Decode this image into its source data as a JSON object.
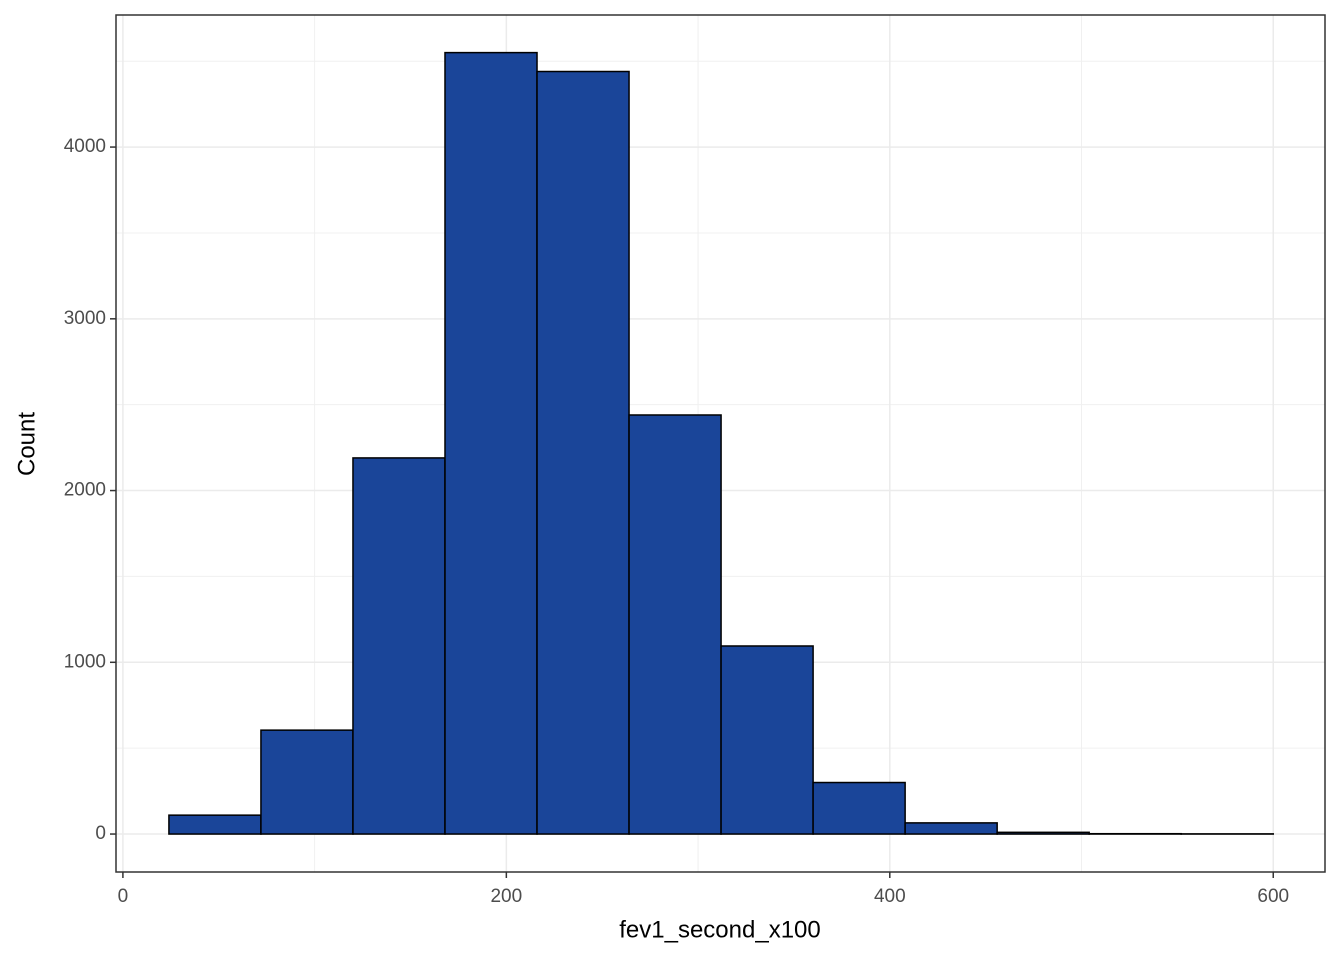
{
  "chart_data": {
    "type": "histogram",
    "x_label": "fev1_second_x100",
    "y_label": "Count",
    "bins": [
      24,
      72,
      120,
      168,
      216,
      264,
      312,
      360,
      408,
      456,
      504,
      552,
      600
    ],
    "values": [
      110,
      605,
      2190,
      4550,
      4440,
      2440,
      1095,
      300,
      65,
      10,
      2,
      1
    ],
    "color": "#1a4599",
    "edge_color": "#000000",
    "xlim": [
      -3.6,
      627
    ],
    "ylim": [
      -221,
      4769
    ],
    "xticks": [
      0,
      200,
      400,
      600
    ],
    "yticks": [
      0,
      1000,
      2000,
      3000,
      4000
    ],
    "minor_xticks": [
      100,
      300,
      500
    ],
    "minor_yticks": [
      500,
      1500,
      2500,
      3500,
      4500
    ],
    "grid": true
  }
}
